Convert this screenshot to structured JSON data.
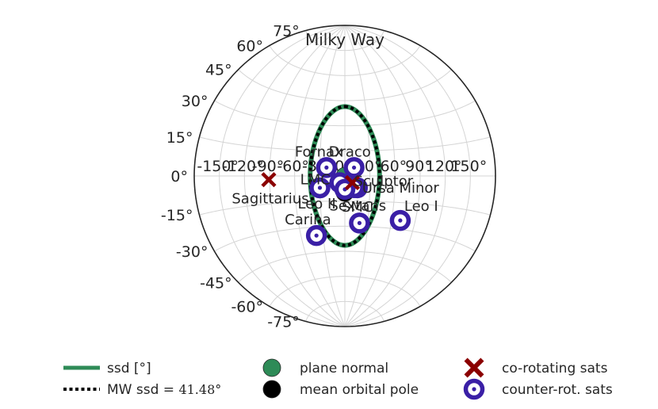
{
  "chart_data": {
    "type": "scatter",
    "projection": "aitoff",
    "title": "Milky Way",
    "grid": true,
    "longitude_ticks": [
      "-150°",
      "-120°",
      "-90°",
      "-60°",
      "-30°",
      "0°",
      "30°",
      "60°",
      "90°",
      "120°",
      "150°"
    ],
    "longitude_tick_values": [
      -150,
      -120,
      -90,
      -60,
      -30,
      0,
      30,
      60,
      90,
      120,
      150
    ],
    "latitude_ticks": [
      "-75°",
      "-60°",
      "-45°",
      "-30°",
      "-15°",
      "0°",
      "15°",
      "30°",
      "45°",
      "60°",
      "75°"
    ],
    "latitude_tick_values": [
      -75,
      -60,
      -45,
      -30,
      -15,
      0,
      15,
      30,
      45,
      60,
      75
    ],
    "series": [
      {
        "name": "plane normal",
        "marker": "filled-circle",
        "color": "#2e8b57",
        "points": [
          {
            "lon": 0,
            "lat": 0
          }
        ]
      },
      {
        "name": "mean orbital pole",
        "marker": "filled-circle",
        "color": "#000000",
        "points": [
          {
            "lon": 0,
            "lat": -10
          }
        ]
      },
      {
        "name": "co-rotating sats",
        "marker": "x",
        "color": "#8b0000",
        "points": [
          {
            "label": "Sagittarius",
            "lon": -91,
            "lat": -2
          },
          {
            "label": "Sculptor",
            "lon": 9,
            "lat": -4
          }
        ]
      },
      {
        "name": "counter-rot. sats",
        "marker": "ring",
        "color": "#3a1fa6",
        "points": [
          {
            "label": "Fornax",
            "lon": -22,
            "lat": 5
          },
          {
            "label": "Draco",
            "lon": 11,
            "lat": 5
          },
          {
            "label": "LMC",
            "lon": -6,
            "lat": -4
          },
          {
            "label": "Ursa Minor",
            "lon": 15,
            "lat": -7
          },
          {
            "label": "",
            "lon": 11,
            "lat": -7
          },
          {
            "label": "Leo II",
            "lon": -30,
            "lat": -7
          },
          {
            "label": "SMC",
            "lon": 0,
            "lat": -8
          },
          {
            "label": "Sextans",
            "lon": 19,
            "lat": -28
          },
          {
            "label": "Leo I",
            "lon": 71,
            "lat": -25
          },
          {
            "label": "Carina",
            "lon": -39,
            "lat": -35
          }
        ]
      }
    ],
    "curves": [
      {
        "name": "ssd [°]",
        "color": "#2e8b57",
        "style": "solid",
        "center": {
          "lon": 0,
          "lat": 0
        },
        "radius_deg": 41.48
      },
      {
        "name": "MW ssd = 41.48°",
        "color": "#000000",
        "style": "dotted",
        "center": {
          "lon": 0,
          "lat": 0
        },
        "radius_deg": 41.48
      }
    ],
    "legend": {
      "placement": "bottom",
      "entries": [
        {
          "kind": "line",
          "label": "ssd [°]",
          "color": "#2e8b57"
        },
        {
          "kind": "filled-circle",
          "label": "plane normal",
          "color": "#2e8b57"
        },
        {
          "kind": "x",
          "label": "co-rotating sats",
          "color": "#8b0000"
        },
        {
          "kind": "dotted-line",
          "label": "MW ssd = ",
          "math": "41.48°",
          "color": "#000000"
        },
        {
          "kind": "filled-circle",
          "label": "mean orbital pole",
          "color": "#000000"
        },
        {
          "kind": "ring",
          "label": "counter-rot. sats",
          "color": "#3a1fa6"
        }
      ]
    }
  }
}
